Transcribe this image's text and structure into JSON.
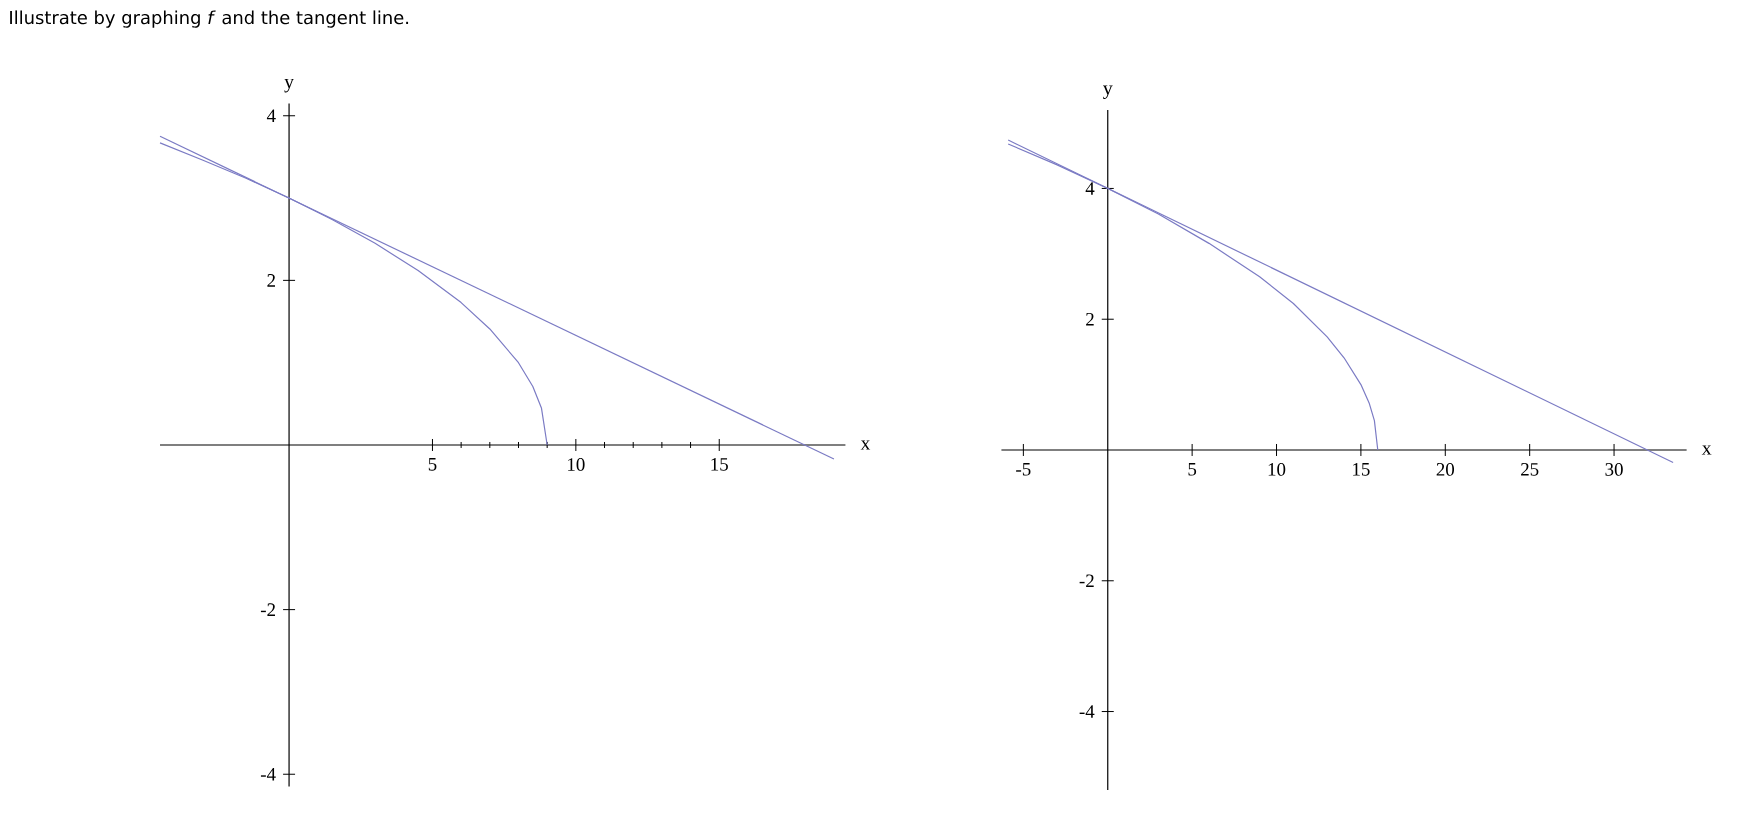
{
  "chart_data": [
    {
      "type": "line",
      "title": "Illustrate by graphing *f* and the tangent line.",
      "xlabel": "x",
      "ylabel": "y",
      "xlim": [
        -4.5,
        19.4
      ],
      "ylim": [
        -4.15,
        4.15
      ],
      "xticks": [
        5,
        10,
        15
      ],
      "yticks": [
        -4,
        -2,
        2,
        4
      ],
      "series": [
        {
          "color": "#7b7bc4",
          "x": [
            -4.5,
            -3,
            -1.5,
            0,
            1.5,
            3,
            4.5,
            6,
            7,
            8,
            8.5,
            8.8,
            9
          ],
          "values": [
            3.67,
            3.46,
            3.24,
            3,
            2.74,
            2.45,
            2.12,
            1.73,
            1.41,
            1,
            0.71,
            0.45,
            0
          ]
        },
        {
          "color": "#7b7bc4",
          "x": [
            -4.5,
            19
          ],
          "values": [
            3.75,
            -0.17
          ]
        }
      ]
    },
    {
      "type": "line",
      "xlabel": "x",
      "ylabel": "y",
      "xlim": [
        -6.3,
        34.3
      ],
      "ylim": [
        -5.2,
        5.2
      ],
      "xticks": [
        -5,
        5,
        10,
        15,
        20,
        25,
        30
      ],
      "yticks": [
        -4,
        -2,
        2,
        4
      ],
      "series": [
        {
          "color": "#7b7bc4",
          "x": [
            -5.9,
            -3,
            0,
            3,
            6,
            9,
            11,
            13,
            14,
            15,
            15.5,
            15.8,
            16
          ],
          "values": [
            4.68,
            4.36,
            4,
            3.61,
            3.16,
            2.65,
            2.24,
            1.73,
            1.41,
            1,
            0.71,
            0.45,
            0
          ]
        },
        {
          "color": "#7b7bc4",
          "x": [
            -5.9,
            33.5
          ],
          "values": [
            4.74,
            -0.19
          ]
        }
      ]
    }
  ]
}
